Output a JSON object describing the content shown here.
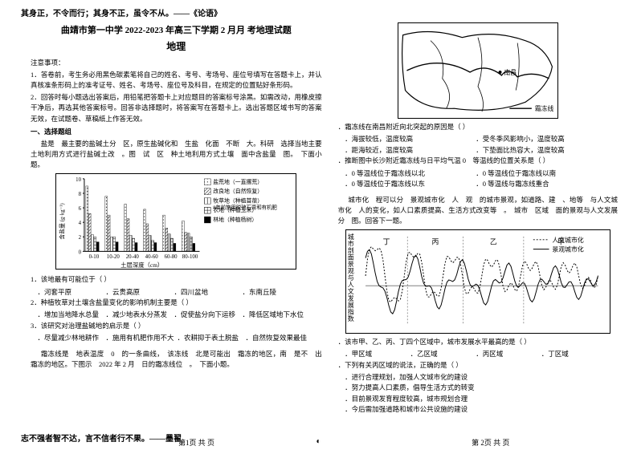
{
  "top_quote": "其身正，不令而行；其身不正，虽令不从。——《论语》",
  "bottom_quote": "志不强者智不达，言不信者行不果。——墨翟",
  "title_line": "曲靖市第一中学 2022-2023 年高三下学期 2 月月 考地理试题",
  "subject": "地理",
  "notice_head": "注意事项：",
  "notice_1": "1．答卷前，考生务必用黑色碳素笔将自己的姓名、考号、考场号、座位号填写在答题卡上，并认真核准条形码上的准考证号、姓名、考场号、座位号及科目，在规定的位置贴好条形码。",
  "notice_2": "2．回答时每小题选出答案后，用铅笔把答题卡上对应题目的答案标号涂黑。如需改动，用橡皮擦干净后，再选其他答案标号。回答非选择题时，将答案写在答题卡上。选出答题区域书写的答案无效，在试题卷、草稿纸上作答无效。",
  "sec1_head": "一、选择题组",
  "passage_salt": "盐是　最主要的盐碱土分　区，原生盐碱化和　生盐　化面　不断　大。科研　选择当地主要土地利用方式进行盐碱土改　。图　试　区　种土地利用方式土壤　面中含盐量　图。　下面小题。",
  "chart": {
    "type": "bar-grouped",
    "ylabel": "含盐量 (g·kg⁻¹)",
    "xlabel": "土层深度（cm）",
    "ylim": [
      0,
      10
    ],
    "yticks": [
      0,
      2,
      4,
      6,
      8,
      10
    ],
    "categories": [
      "0-10",
      "10-20",
      "20-40",
      "40-60",
      "60-80",
      "80-100"
    ],
    "legend": [
      {
        "name": "盐荒地（一直撂荒）",
        "fill": "#fff",
        "pattern": "dots"
      },
      {
        "name": "改良地（自然恢复）",
        "fill": "#fff",
        "pattern": "diag"
      },
      {
        "name": "牧草地（种植苜蓿）",
        "fill": "#fff",
        "pattern": "vert",
        "note": "8年前施用脱硫石膏和有机肥"
      },
      {
        "name": "农地（种植玉米）",
        "fill": "#fff",
        "pattern": "grid"
      },
      {
        "name": "林地（种植杨树）",
        "fill": "#000",
        "pattern": "solid"
      }
    ],
    "values": [
      [
        9.0,
        5.2,
        2.3,
        2.0,
        1.3
      ],
      [
        7.6,
        5.0,
        2.0,
        2.0,
        1.3
      ],
      [
        6.5,
        4.5,
        2.2,
        1.8,
        1.2
      ],
      [
        5.8,
        3.8,
        2.2,
        1.5,
        1.2
      ],
      [
        5.0,
        3.2,
        2.4,
        1.8,
        1.1
      ],
      [
        4.2,
        2.6,
        2.5,
        2.0,
        1.1
      ]
    ],
    "bg": "#ffffff",
    "border": "#000000",
    "bar_width": 0.14,
    "font_size": 8
  },
  "q1": {
    "stem": "1．该地最有可能位于（  ）",
    "opts": [
      "．河套平原",
      "．云贵高原",
      "．四川盆地",
      "．东南丘陵"
    ]
  },
  "q2": {
    "stem": "2．种植牧草对土壤含盐量变化的影响机制主要是（  ）",
    "opts": [
      "．增加当地降水总量",
      "．减少地表水分蒸发",
      "．促使盐分向下运移",
      "．降低区域地下水位"
    ]
  },
  "q3": {
    "stem": "3．该研究对治理盐碱地的启示是（  ）",
    "opts": [
      "．尽量减少林地耕作",
      "．施用有机肥作用不大",
      "．农耕抑于表土脱盐",
      "．自然恢复效果最佳"
    ]
  },
  "passage_frost": "霜冻线是　地表温度　0　的一条曲线，　该冻线　北是可能出　霜冻的地区，南　是不　出　霜冻的地区。下图示　2022 年 2 月　日的霜冻线位　。　下面小题。",
  "map": {
    "label_nanchang": "南昌",
    "label_frostline": "霜冻线",
    "caption": ""
  },
  "q4": {
    "stem": "．霜冻线在南昌附近向北突起的原因是（  ）",
    "opts": [
      "．海拔较低，温度较高",
      "．受冬季风影响小，温度较高",
      "．距海较近，温度较高",
      "．下垫面比热容大，温度较高"
    ]
  },
  "q5": {
    "stem": "．推断图中长沙附近霜冻线与日平均气温 0　等温线的位置关系是（  ）",
    "opts": [
      "．0 等温线位于霜冻线以北",
      "．0 等温线位于霜冻线以南",
      "．0 等温线位于霜冻线以东",
      "．0 等温线与霜冻线重合"
    ]
  },
  "passage_city": "城市化　程可以分　景观城市化　人　观　的城市景观，如道路、建　、地等　与人文城市化　人的变化，如人口素质提高、生活方式改变等　。　城市　区域　面的景观与人文发展　分　图。回答下一题。",
  "linechart": {
    "type": "line",
    "ylabel": "城市剖面景观与人文发展指数",
    "legend": [
      {
        "name": "人文城市化",
        "style": "dotted",
        "color": "#000"
      },
      {
        "name": "景观城市化",
        "style": "solid",
        "color": "#000"
      }
    ],
    "regions": [
      "丁",
      "丙",
      "乙",
      "甲"
    ],
    "ylim": [
      -0.8,
      1.0
    ],
    "font_size": 8
  },
  "q6": {
    "stem": "．该市甲、乙、丙、丁四个区域中，城市发展水平最高的是（  ）",
    "opts": [
      "．甲区域",
      "．乙区域",
      "．丙区域",
      "．丁区域"
    ]
  },
  "q7": {
    "stem": "．下列有关丙区域的说法，正确的是（  ）",
    "opts": [
      "．进行合理规划，加强人文城市化的建设",
      "．努力提高人口素质，倡导生活方式的转变",
      "．目前景观发育程度较高，城市规划合理",
      "．今后需加强道路和城市公共设施的建设"
    ]
  },
  "footer": {
    "left": "第1页 共 页",
    "mid": "◐",
    "right": "第 2页 共 页"
  }
}
